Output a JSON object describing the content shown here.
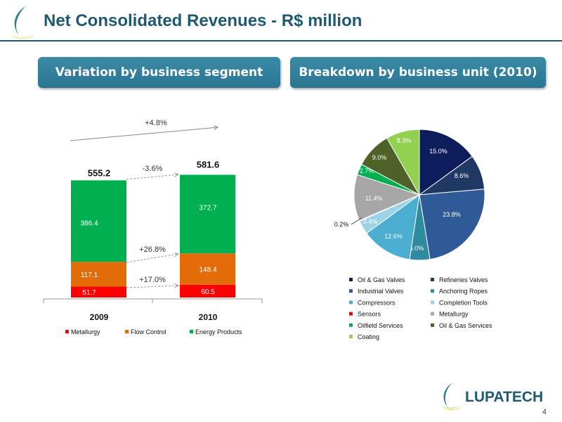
{
  "title": "Net Consolidated Revenues - R$ million",
  "headers": {
    "left": "Variation by business segment",
    "right": "Breakdown by business unit (2010)"
  },
  "page_number": "4",
  "logo_text": "LUPATECH",
  "colors": {
    "title": "#1e5a72",
    "header": "#2d7b97",
    "metallurgy": "#ff0000",
    "flow_control": "#e36c09",
    "energy_products": "#00b050"
  },
  "chart_data": [
    {
      "type": "bar",
      "stacked": true,
      "categories": [
        "2009",
        "2010"
      ],
      "series": [
        {
          "name": "Metallurgy",
          "color": "#ff0000",
          "values": [
            51.7,
            60.5
          ],
          "labels": [
            "51.7",
            "60.5"
          ]
        },
        {
          "name": "Flow Control",
          "color": "#e36c09",
          "values": [
            117.1,
            148.4
          ],
          "labels": [
            "117.1",
            "148.4"
          ]
        },
        {
          "name": "Energy Products",
          "color": "#00b050",
          "values": [
            386.4,
            372.7
          ],
          "labels": [
            "386.4",
            "372.7"
          ]
        }
      ],
      "totals": [
        "555.2",
        "581.6"
      ],
      "annotations": {
        "total_change": "+4.8%",
        "energy_change": "-3.6%",
        "flow_change": "+26.8%",
        "metallurgy_change": "+17.0%"
      },
      "ylim": [
        0,
        600
      ],
      "legend_position": "bottom"
    },
    {
      "type": "pie",
      "slices": [
        {
          "name": "Oil & Gas Valves",
          "value": 15.0,
          "label": "15.0%",
          "color": "#0d1d5c"
        },
        {
          "name": "Refineries Valves",
          "value": 8.6,
          "label": "8.6%",
          "color": "#1f3864"
        },
        {
          "name": "Industrial Valves",
          "value": 23.8,
          "label": "23.8%",
          "color": "#2e5b97"
        },
        {
          "name": "Anchoring Ropes",
          "value": 5.0,
          "label": "5.0%",
          "color": "#2e8ba0"
        },
        {
          "name": "Compressors",
          "value": 12.6,
          "label": "12.6%",
          "color": "#4badd0"
        },
        {
          "name": "Completion Tools",
          "value": 3.4,
          "label": "3.4%",
          "color": "#9dd3e6"
        },
        {
          "name": "Sensors",
          "value": 0.2,
          "label": "0.2%",
          "color": "#ff0000"
        },
        {
          "name": "Metallurgy",
          "value": 11.4,
          "label": "11.4%",
          "color": "#a6a6a6"
        },
        {
          "name": "Oilfield Services",
          "value": 2.7,
          "label": "2.7%",
          "color": "#00b050"
        },
        {
          "name": "Oil & Gas Services",
          "value": 9.0,
          "label": "9.0%",
          "color": "#4f6228"
        },
        {
          "name": "Coating",
          "value": 8.3,
          "label": "8.3%",
          "color": "#92d050"
        }
      ],
      "legend_position": "bottom"
    }
  ]
}
